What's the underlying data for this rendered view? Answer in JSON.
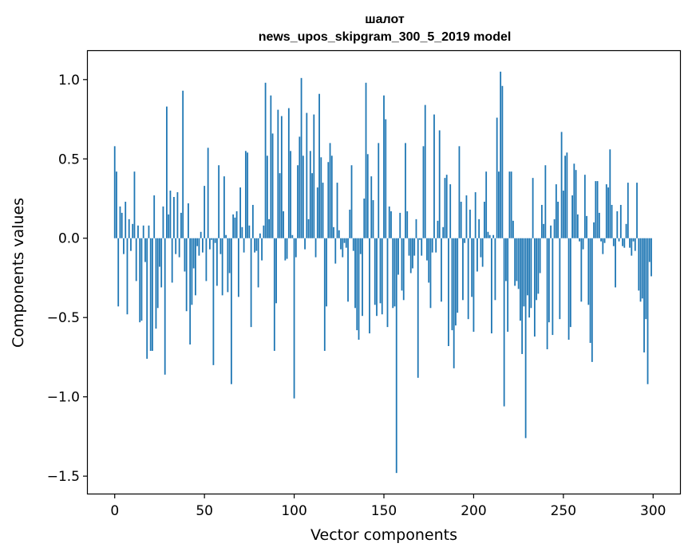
{
  "chart_data": {
    "type": "bar",
    "title_line1": "шалот",
    "title_line2": "news_upos_skipgram_300_5_2019 model",
    "xlabel": "Vector components",
    "ylabel": "Components values",
    "xlim": [
      -15,
      315
    ],
    "ylim": [
      -1.61,
      1.18
    ],
    "xticks": [
      0,
      50,
      100,
      150,
      200,
      250,
      300
    ],
    "xtick_labels": [
      "0",
      "50",
      "100",
      "150",
      "200",
      "250",
      "300"
    ],
    "yticks": [
      1.0,
      0.5,
      0.0,
      -0.5,
      -1.0,
      -1.5
    ],
    "ytick_labels": [
      "1.0",
      "0.5",
      "0.0",
      "−0.5",
      "−1.0",
      "−1.5"
    ],
    "bar_color": "#1f77b4",
    "categories_count": 300,
    "values": [
      0.58,
      0.42,
      -0.43,
      0.2,
      0.16,
      -0.1,
      0.23,
      -0.48,
      0.12,
      -0.08,
      0.09,
      0.42,
      -0.27,
      0.08,
      -0.53,
      -0.52,
      0.08,
      -0.15,
      -0.76,
      0.08,
      -0.71,
      -0.71,
      0.27,
      -0.57,
      -0.44,
      -0.18,
      -0.31,
      0.2,
      -0.86,
      0.83,
      0.15,
      0.3,
      -0.28,
      0.26,
      -0.1,
      0.29,
      -0.12,
      0.16,
      0.93,
      -0.21,
      -0.46,
      0.22,
      -0.67,
      -0.42,
      -0.19,
      -0.36,
      -0.05,
      -0.11,
      0.04,
      -0.09,
      0.33,
      -0.27,
      0.57,
      -0.07,
      -0.01,
      -0.8,
      -0.03,
      -0.3,
      0.46,
      -0.1,
      -0.36,
      0.39,
      0.02,
      -0.34,
      -0.22,
      -0.92,
      0.15,
      0.13,
      0.17,
      -0.37,
      0.32,
      0.07,
      -0.09,
      0.55,
      0.54,
      0.08,
      -0.56,
      0.21,
      -0.09,
      -0.08,
      -0.31,
      0.03,
      -0.14,
      0.08,
      0.98,
      0.52,
      0.12,
      0.9,
      0.66,
      -0.71,
      -0.41,
      0.81,
      0.41,
      0.77,
      0.17,
      -0.14,
      -0.13,
      0.82,
      0.55,
      0.02,
      -1.01,
      -0.12,
      0.46,
      0.64,
      1.01,
      0.52,
      -0.07,
      0.79,
      0.12,
      0.55,
      0.41,
      0.78,
      -0.12,
      0.32,
      0.91,
      0.51,
      0.35,
      -0.71,
      -0.43,
      0.48,
      0.6,
      0.52,
      0.07,
      -0.16,
      0.35,
      0.05,
      -0.07,
      -0.12,
      -0.03,
      -0.06,
      -0.4,
      0.18,
      0.46,
      -0.08,
      -0.44,
      -0.58,
      -0.64,
      -0.1,
      -0.49,
      0.25,
      0.98,
      0.53,
      -0.6,
      0.39,
      0.24,
      -0.42,
      -0.49,
      0.6,
      -0.41,
      -0.48,
      0.9,
      0.75,
      -0.56,
      0.2,
      0.17,
      -0.44,
      -0.43,
      -1.48,
      -0.23,
      0.16,
      -0.33,
      -0.39,
      0.6,
      0.17,
      -0.11,
      -0.22,
      -0.19,
      -0.11,
      0.12,
      -0.88,
      -0.01,
      -0.11,
      0.58,
      0.84,
      -0.14,
      -0.28,
      -0.44,
      -0.09,
      0.78,
      -0.09,
      0.11,
      0.68,
      -0.4,
      0.07,
      0.38,
      0.4,
      -0.68,
      0.34,
      -0.58,
      -0.82,
      -0.55,
      -0.47,
      0.58,
      0.23,
      -0.39,
      -0.03,
      0.27,
      -0.51,
      0.18,
      -0.37,
      -0.59,
      0.29,
      -0.21,
      0.12,
      -0.12,
      -0.18,
      0.23,
      0.42,
      0.04,
      0.02,
      -0.6,
      0.02,
      -0.39,
      0.76,
      0.42,
      1.05,
      0.96,
      -1.06,
      -0.27,
      -0.59,
      0.42,
      0.42,
      0.11,
      -0.3,
      -0.27,
      -0.32,
      -0.52,
      -0.73,
      -0.43,
      -1.26,
      -0.36,
      -0.5,
      -0.44,
      0.38,
      -0.62,
      -0.39,
      -0.35,
      -0.22,
      0.21,
      0.09,
      0.46,
      -0.7,
      -0.53,
      0.08,
      -0.61,
      0.12,
      0.34,
      0.23,
      -0.51,
      0.67,
      0.3,
      0.52,
      0.54,
      -0.64,
      -0.56,
      0.27,
      0.47,
      0.43,
      0.15,
      -0.02,
      -0.4,
      -0.07,
      0.4,
      0.14,
      -0.42,
      -0.66,
      -0.78,
      0.1,
      0.36,
      0.36,
      0.16,
      -0.02,
      -0.1,
      -0.03,
      0.34,
      0.32,
      0.56,
      0.21,
      -0.05,
      -0.31,
      0.17,
      -0.02,
      0.21,
      -0.05,
      -0.06,
      0.09,
      0.35,
      -0.06,
      -0.11,
      -0.02,
      -0.08,
      0.35,
      -0.33,
      -0.4,
      -0.38,
      -0.72,
      -0.51,
      -0.92,
      -0.15,
      -0.24
    ]
  }
}
